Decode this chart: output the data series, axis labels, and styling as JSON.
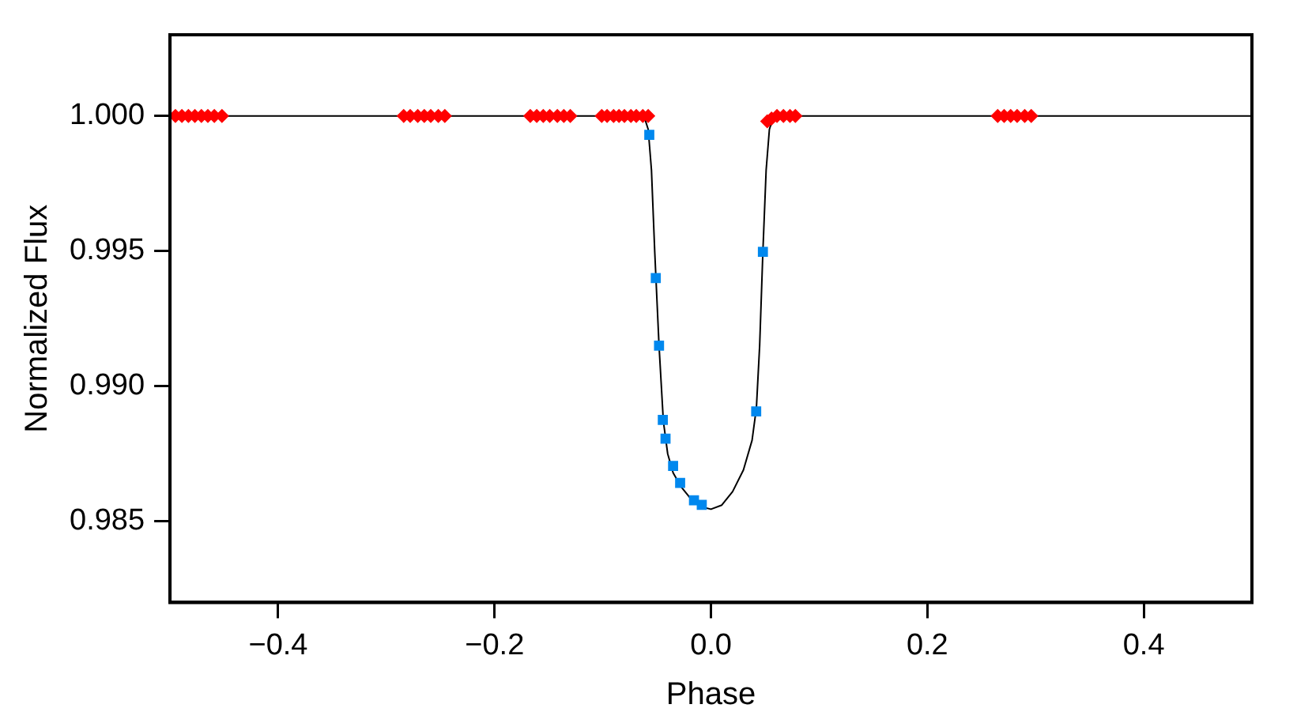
{
  "chart_data": {
    "type": "scatter",
    "xlabel": "Phase",
    "ylabel": "Normalized Flux",
    "xlim": [
      -0.5,
      0.5
    ],
    "xticks": [
      {
        "value": -0.4,
        "label": "−0.4"
      },
      {
        "value": -0.2,
        "label": "−0.2"
      },
      {
        "value": 0,
        "label": "0.0"
      },
      {
        "value": 0.2,
        "label": "0.2"
      },
      {
        "value": 0.4,
        "label": "0.4"
      }
    ],
    "ylim": [
      0.982,
      1.003
    ],
    "yticks": [
      {
        "value": 0.985,
        "label": "0.985"
      },
      {
        "value": 0.99,
        "label": "0.990"
      },
      {
        "value": 0.995,
        "label": "0.995"
      },
      {
        "value": 1,
        "label": "1.000"
      }
    ],
    "grid": false,
    "legend": false,
    "series": [
      {
        "type": "line",
        "color": "#000000",
        "marker": "none",
        "line_style": "solid",
        "x": [
          -0.5,
          -0.062,
          -0.058,
          -0.055,
          -0.052,
          -0.048,
          -0.044,
          -0.04,
          -0.035,
          -0.028,
          -0.02,
          -0.01,
          0,
          0.01,
          0.02,
          0.03,
          0.038,
          0.042,
          0.045,
          0.048,
          0.051,
          0.054,
          0.058,
          0.5
        ],
        "values": [
          1,
          1,
          0.9995,
          0.998,
          0.995,
          0.9915,
          0.9887,
          0.9875,
          0.9868,
          0.9863,
          0.9859,
          0.98555,
          0.98545,
          0.9856,
          0.9861,
          0.9869,
          0.988,
          0.9892,
          0.9915,
          0.995,
          0.998,
          0.9995,
          1,
          1
        ]
      },
      {
        "color": "#ff0000",
        "marker": "diamond",
        "x": [
          -0.495,
          -0.489,
          -0.483,
          -0.477,
          -0.471,
          -0.465,
          -0.459,
          -0.452,
          -0.284,
          -0.278,
          -0.271,
          -0.265,
          -0.259,
          -0.252,
          -0.246,
          -0.167,
          -0.161,
          -0.155,
          -0.149,
          -0.142,
          -0.136,
          -0.13,
          -0.101,
          -0.096,
          -0.09,
          -0.085,
          -0.08,
          -0.074,
          -0.069,
          -0.063,
          -0.058,
          0.052,
          0.056,
          0.061,
          0.067,
          0.073,
          0.078,
          0.265,
          0.271,
          0.277,
          0.283,
          0.29,
          0.296
        ],
        "values": [
          1,
          1,
          1,
          1,
          1,
          1,
          1,
          1,
          1,
          1,
          1,
          1,
          1,
          1,
          1,
          1,
          1,
          1,
          1,
          1,
          1,
          1,
          1,
          1,
          1,
          1,
          1,
          1,
          1,
          1,
          1,
          0.9998,
          0.9999,
          1,
          1,
          1,
          1,
          1,
          1,
          1,
          1,
          1,
          1
        ]
      },
      {
        "color": "#0088ee",
        "marker": "square",
        "x": [
          -0.057,
          -0.051,
          -0.048,
          -0.0445,
          -0.042,
          -0.035,
          -0.0285,
          -0.0157,
          -0.0085,
          0.0418,
          0.048
        ],
        "values": [
          0.9993,
          0.994,
          0.9915,
          0.98875,
          0.98806,
          0.98705,
          0.98642,
          0.98578,
          0.98561,
          0.98907,
          0.99497
        ]
      }
    ]
  }
}
